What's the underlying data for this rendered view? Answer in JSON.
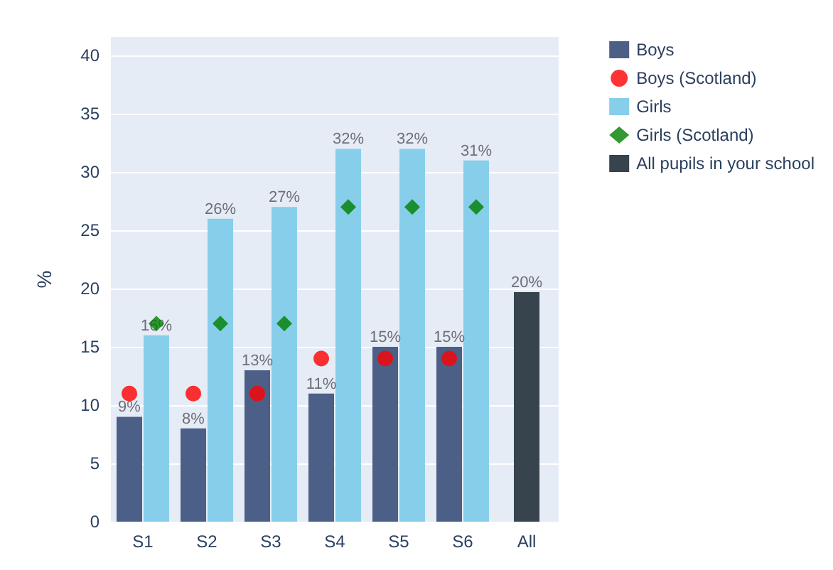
{
  "chart_data": {
    "type": "bar",
    "ylabel": "%",
    "categories": [
      "S1",
      "S2",
      "S3",
      "S4",
      "S5",
      "S6",
      "All"
    ],
    "series": [
      {
        "name": "Boys",
        "color": "#4c5f87",
        "values": [
          9,
          8,
          13,
          11,
          15,
          15,
          null
        ],
        "value_labels": [
          "9%",
          "8%",
          "13%",
          "11%",
          "15%",
          "15%",
          null
        ]
      },
      {
        "name": "Boys (Scotland)",
        "type": "scatter",
        "marker": "circle",
        "color": "#ff0000",
        "values": [
          11,
          11,
          11,
          14,
          14,
          14,
          null
        ]
      },
      {
        "name": "Girls",
        "color": "#87ceeb",
        "values": [
          16,
          26,
          27,
          32,
          32,
          31,
          null
        ],
        "value_labels": [
          "16%",
          "26%",
          "27%",
          "32%",
          "32%",
          "31%",
          null
        ]
      },
      {
        "name": "Girls (Scotland)",
        "type": "scatter",
        "marker": "diamond",
        "color": "#008000",
        "values": [
          17,
          17,
          17,
          27,
          27,
          27,
          null
        ]
      },
      {
        "name": "All pupils in your school",
        "color": "#37434d",
        "values": [
          null,
          null,
          null,
          null,
          null,
          null,
          19.7
        ],
        "value_labels": [
          null,
          null,
          null,
          null,
          null,
          null,
          "20%"
        ]
      }
    ],
    "ylim": [
      0,
      41.6
    ],
    "yticks": [
      0,
      5,
      10,
      15,
      20,
      25,
      30,
      35,
      40
    ],
    "grid": "y",
    "legend": "top right"
  }
}
